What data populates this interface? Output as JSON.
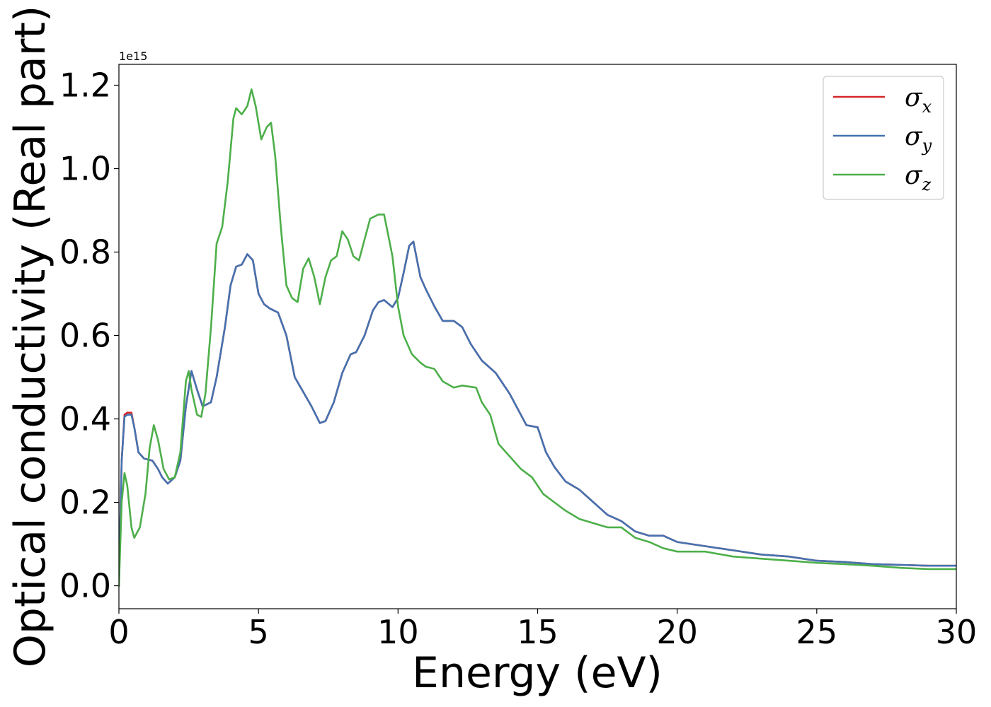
{
  "chart_data": {
    "type": "line",
    "title": "",
    "xlabel": "Energy (eV)",
    "ylabel": "Optical conductivity (Real part)",
    "y_offset_label": "1e15",
    "xlim": [
      0,
      30
    ],
    "ylim": [
      -0.055,
      1.25
    ],
    "xticks": [
      0,
      5,
      10,
      15,
      20,
      25,
      30
    ],
    "xtick_labels": [
      "0",
      "5",
      "10",
      "15",
      "20",
      "25",
      "30"
    ],
    "yticks": [
      0.0,
      0.2,
      0.4,
      0.6,
      0.8,
      1.0,
      1.2
    ],
    "ytick_labels": [
      "0.0",
      "0.2",
      "0.4",
      "0.6",
      "0.8",
      "1.0",
      "1.2"
    ],
    "grid": false,
    "legend_position": "top-right",
    "series": [
      {
        "name": "σx",
        "symbol": "σ",
        "subscript": "x",
        "color": "#d62728",
        "points": [
          [
            0,
            0.0
          ],
          [
            0.1,
            0.3
          ],
          [
            0.2,
            0.41
          ],
          [
            0.3,
            0.415
          ],
          [
            0.45,
            0.415
          ],
          [
            0.55,
            0.38
          ],
          [
            0.7,
            0.32
          ],
          [
            0.9,
            0.305
          ],
          [
            1.2,
            0.3
          ],
          [
            1.4,
            0.28
          ],
          [
            1.55,
            0.26
          ],
          [
            1.75,
            0.245
          ],
          [
            2.0,
            0.26
          ],
          [
            2.2,
            0.3
          ],
          [
            2.4,
            0.43
          ],
          [
            2.6,
            0.515
          ],
          [
            2.8,
            0.47
          ],
          [
            3.0,
            0.43
          ],
          [
            3.3,
            0.44
          ],
          [
            3.5,
            0.5
          ],
          [
            3.8,
            0.62
          ],
          [
            4.0,
            0.72
          ],
          [
            4.2,
            0.765
          ],
          [
            4.4,
            0.77
          ],
          [
            4.6,
            0.795
          ],
          [
            4.8,
            0.78
          ],
          [
            5.0,
            0.7
          ],
          [
            5.2,
            0.675
          ],
          [
            5.4,
            0.665
          ],
          [
            5.7,
            0.655
          ],
          [
            6.0,
            0.6
          ],
          [
            6.3,
            0.5
          ],
          [
            6.6,
            0.465
          ],
          [
            6.9,
            0.43
          ],
          [
            7.2,
            0.39
          ],
          [
            7.4,
            0.395
          ],
          [
            7.7,
            0.44
          ],
          [
            8.0,
            0.51
          ],
          [
            8.3,
            0.555
          ],
          [
            8.5,
            0.56
          ],
          [
            8.8,
            0.6
          ],
          [
            9.1,
            0.66
          ],
          [
            9.3,
            0.68
          ],
          [
            9.5,
            0.685
          ],
          [
            9.8,
            0.668
          ],
          [
            10.0,
            0.69
          ],
          [
            10.2,
            0.75
          ],
          [
            10.4,
            0.815
          ],
          [
            10.55,
            0.825
          ],
          [
            10.8,
            0.74
          ],
          [
            11.0,
            0.71
          ],
          [
            11.3,
            0.67
          ],
          [
            11.6,
            0.635
          ],
          [
            12.0,
            0.635
          ],
          [
            12.3,
            0.62
          ],
          [
            12.6,
            0.58
          ],
          [
            13.0,
            0.54
          ],
          [
            13.5,
            0.51
          ],
          [
            14.0,
            0.46
          ],
          [
            14.4,
            0.41
          ],
          [
            14.6,
            0.385
          ],
          [
            15.0,
            0.38
          ],
          [
            15.3,
            0.32
          ],
          [
            15.6,
            0.285
          ],
          [
            16.0,
            0.25
          ],
          [
            16.5,
            0.23
          ],
          [
            17.0,
            0.2
          ],
          [
            17.5,
            0.17
          ],
          [
            18.0,
            0.155
          ],
          [
            18.5,
            0.13
          ],
          [
            19.0,
            0.12
          ],
          [
            19.5,
            0.12
          ],
          [
            20.0,
            0.105
          ],
          [
            21.0,
            0.095
          ],
          [
            22.0,
            0.085
          ],
          [
            23.0,
            0.075
          ],
          [
            24.0,
            0.07
          ],
          [
            25.0,
            0.06
          ],
          [
            26.0,
            0.057
          ],
          [
            27.0,
            0.052
          ],
          [
            28.0,
            0.05
          ],
          [
            29.0,
            0.048
          ],
          [
            30.0,
            0.048
          ]
        ]
      },
      {
        "name": "σy",
        "symbol": "σ",
        "subscript": "y",
        "color": "#4472b0",
        "points": [
          [
            0,
            0.0
          ],
          [
            0.1,
            0.3
          ],
          [
            0.2,
            0.405
          ],
          [
            0.3,
            0.41
          ],
          [
            0.45,
            0.41
          ],
          [
            0.55,
            0.38
          ],
          [
            0.7,
            0.32
          ],
          [
            0.9,
            0.305
          ],
          [
            1.2,
            0.3
          ],
          [
            1.4,
            0.28
          ],
          [
            1.55,
            0.26
          ],
          [
            1.75,
            0.245
          ],
          [
            2.0,
            0.26
          ],
          [
            2.2,
            0.3
          ],
          [
            2.4,
            0.43
          ],
          [
            2.6,
            0.515
          ],
          [
            2.8,
            0.47
          ],
          [
            3.0,
            0.43
          ],
          [
            3.3,
            0.44
          ],
          [
            3.5,
            0.5
          ],
          [
            3.8,
            0.62
          ],
          [
            4.0,
            0.72
          ],
          [
            4.2,
            0.765
          ],
          [
            4.4,
            0.77
          ],
          [
            4.6,
            0.795
          ],
          [
            4.8,
            0.78
          ],
          [
            5.0,
            0.7
          ],
          [
            5.2,
            0.675
          ],
          [
            5.4,
            0.665
          ],
          [
            5.7,
            0.655
          ],
          [
            6.0,
            0.6
          ],
          [
            6.3,
            0.5
          ],
          [
            6.6,
            0.465
          ],
          [
            6.9,
            0.43
          ],
          [
            7.2,
            0.39
          ],
          [
            7.4,
            0.395
          ],
          [
            7.7,
            0.44
          ],
          [
            8.0,
            0.51
          ],
          [
            8.3,
            0.555
          ],
          [
            8.5,
            0.56
          ],
          [
            8.8,
            0.6
          ],
          [
            9.1,
            0.66
          ],
          [
            9.3,
            0.68
          ],
          [
            9.5,
            0.685
          ],
          [
            9.8,
            0.668
          ],
          [
            10.0,
            0.69
          ],
          [
            10.2,
            0.75
          ],
          [
            10.4,
            0.815
          ],
          [
            10.55,
            0.825
          ],
          [
            10.8,
            0.74
          ],
          [
            11.0,
            0.71
          ],
          [
            11.3,
            0.67
          ],
          [
            11.6,
            0.635
          ],
          [
            12.0,
            0.635
          ],
          [
            12.3,
            0.62
          ],
          [
            12.6,
            0.58
          ],
          [
            13.0,
            0.54
          ],
          [
            13.5,
            0.51
          ],
          [
            14.0,
            0.46
          ],
          [
            14.4,
            0.41
          ],
          [
            14.6,
            0.385
          ],
          [
            15.0,
            0.38
          ],
          [
            15.3,
            0.32
          ],
          [
            15.6,
            0.285
          ],
          [
            16.0,
            0.25
          ],
          [
            16.5,
            0.23
          ],
          [
            17.0,
            0.2
          ],
          [
            17.5,
            0.17
          ],
          [
            18.0,
            0.155
          ],
          [
            18.5,
            0.13
          ],
          [
            19.0,
            0.12
          ],
          [
            19.5,
            0.12
          ],
          [
            20.0,
            0.105
          ],
          [
            21.0,
            0.095
          ],
          [
            22.0,
            0.085
          ],
          [
            23.0,
            0.075
          ],
          [
            24.0,
            0.07
          ],
          [
            25.0,
            0.06
          ],
          [
            26.0,
            0.057
          ],
          [
            27.0,
            0.052
          ],
          [
            28.0,
            0.05
          ],
          [
            29.0,
            0.048
          ],
          [
            30.0,
            0.048
          ]
        ]
      },
      {
        "name": "σz",
        "symbol": "σ",
        "subscript": "z",
        "color": "#4daf4a",
        "points": [
          [
            0,
            0.0
          ],
          [
            0.1,
            0.2
          ],
          [
            0.2,
            0.27
          ],
          [
            0.3,
            0.24
          ],
          [
            0.45,
            0.14
          ],
          [
            0.55,
            0.115
          ],
          [
            0.75,
            0.14
          ],
          [
            0.95,
            0.22
          ],
          [
            1.1,
            0.33
          ],
          [
            1.25,
            0.385
          ],
          [
            1.4,
            0.35
          ],
          [
            1.6,
            0.28
          ],
          [
            1.8,
            0.255
          ],
          [
            2.0,
            0.26
          ],
          [
            2.2,
            0.32
          ],
          [
            2.4,
            0.49
          ],
          [
            2.5,
            0.515
          ],
          [
            2.6,
            0.47
          ],
          [
            2.8,
            0.41
          ],
          [
            2.95,
            0.405
          ],
          [
            3.1,
            0.46
          ],
          [
            3.3,
            0.62
          ],
          [
            3.5,
            0.82
          ],
          [
            3.7,
            0.86
          ],
          [
            3.9,
            0.97
          ],
          [
            4.1,
            1.12
          ],
          [
            4.2,
            1.145
          ],
          [
            4.4,
            1.13
          ],
          [
            4.6,
            1.15
          ],
          [
            4.75,
            1.19
          ],
          [
            4.9,
            1.15
          ],
          [
            5.1,
            1.07
          ],
          [
            5.3,
            1.1
          ],
          [
            5.45,
            1.11
          ],
          [
            5.6,
            1.03
          ],
          [
            5.8,
            0.86
          ],
          [
            6.0,
            0.72
          ],
          [
            6.2,
            0.69
          ],
          [
            6.4,
            0.68
          ],
          [
            6.6,
            0.76
          ],
          [
            6.8,
            0.785
          ],
          [
            7.0,
            0.74
          ],
          [
            7.2,
            0.675
          ],
          [
            7.4,
            0.74
          ],
          [
            7.6,
            0.78
          ],
          [
            7.8,
            0.79
          ],
          [
            8.0,
            0.85
          ],
          [
            8.2,
            0.83
          ],
          [
            8.4,
            0.79
          ],
          [
            8.6,
            0.78
          ],
          [
            8.8,
            0.83
          ],
          [
            9.0,
            0.88
          ],
          [
            9.3,
            0.89
          ],
          [
            9.5,
            0.89
          ],
          [
            9.8,
            0.79
          ],
          [
            10.0,
            0.67
          ],
          [
            10.2,
            0.6
          ],
          [
            10.5,
            0.555
          ],
          [
            10.8,
            0.535
          ],
          [
            11.0,
            0.525
          ],
          [
            11.3,
            0.52
          ],
          [
            11.6,
            0.49
          ],
          [
            12.0,
            0.475
          ],
          [
            12.3,
            0.48
          ],
          [
            12.8,
            0.475
          ],
          [
            13.0,
            0.44
          ],
          [
            13.3,
            0.41
          ],
          [
            13.6,
            0.34
          ],
          [
            14.0,
            0.31
          ],
          [
            14.4,
            0.28
          ],
          [
            14.8,
            0.26
          ],
          [
            15.2,
            0.22
          ],
          [
            15.6,
            0.2
          ],
          [
            16.0,
            0.18
          ],
          [
            16.5,
            0.16
          ],
          [
            17.0,
            0.15
          ],
          [
            17.5,
            0.14
          ],
          [
            18.0,
            0.14
          ],
          [
            18.5,
            0.115
          ],
          [
            19.0,
            0.105
          ],
          [
            19.5,
            0.09
          ],
          [
            20.0,
            0.082
          ],
          [
            21.0,
            0.082
          ],
          [
            22.0,
            0.07
          ],
          [
            23.0,
            0.065
          ],
          [
            24.0,
            0.06
          ],
          [
            25.0,
            0.055
          ],
          [
            26.0,
            0.052
          ],
          [
            27.0,
            0.048
          ],
          [
            28.0,
            0.043
          ],
          [
            29.0,
            0.04
          ],
          [
            30.0,
            0.04
          ]
        ]
      }
    ]
  }
}
